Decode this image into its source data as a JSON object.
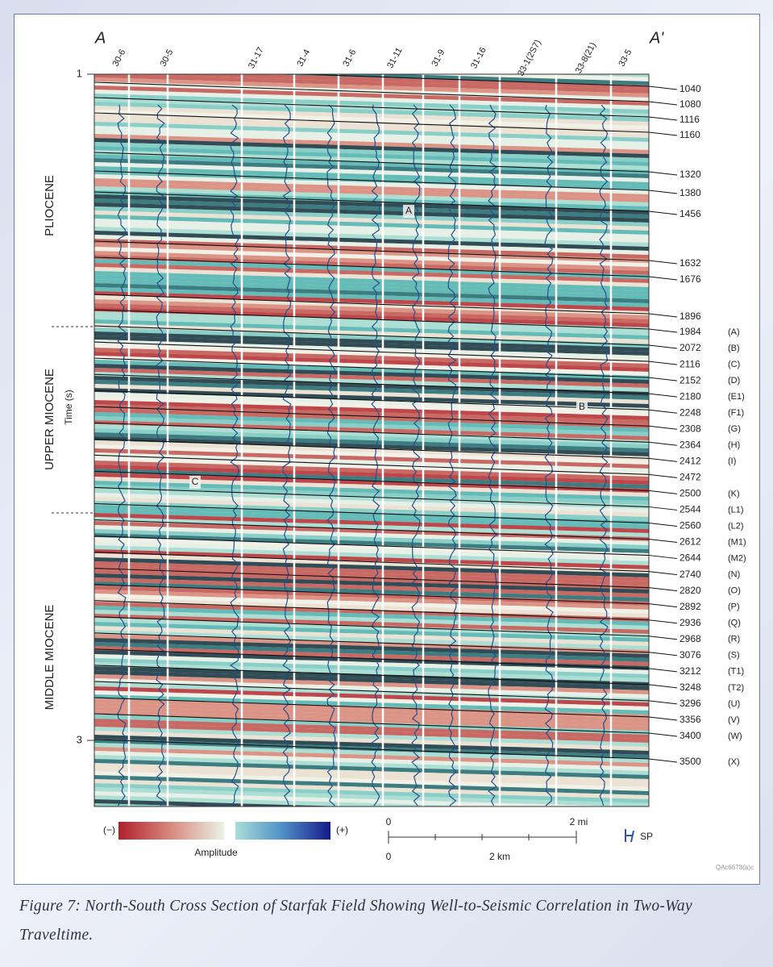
{
  "figure": {
    "section_labels": {
      "left": "A",
      "right": "A'"
    },
    "wells": [
      "30-6",
      "30-5",
      "31-17",
      "31-4",
      "31-6",
      "31-11",
      "31-9",
      "31-16",
      "33-1(2S7)",
      "33-8(21)",
      "33-5"
    ],
    "time_axis": {
      "label": "Time (s)",
      "ticks": [
        1,
        3
      ]
    },
    "epochs": [
      "PLIOCENE",
      "UPPER MIOCENE",
      "MIDDLE MIOCENE"
    ],
    "annotations": [
      "A",
      "B",
      "C"
    ],
    "horizons": [
      {
        "depth": 1040
      },
      {
        "depth": 1080
      },
      {
        "depth": 1116
      },
      {
        "depth": 1160
      },
      {
        "depth": 1320
      },
      {
        "depth": 1380
      },
      {
        "depth": 1456
      },
      {
        "depth": 1632
      },
      {
        "depth": 1676
      },
      {
        "depth": 1896
      },
      {
        "depth": 1984,
        "marker": "(A)"
      },
      {
        "depth": 2072,
        "marker": "(B)"
      },
      {
        "depth": 2116,
        "marker": "(C)"
      },
      {
        "depth": 2152,
        "marker": "(D)"
      },
      {
        "depth": 2180,
        "marker": "(E1)"
      },
      {
        "depth": 2248,
        "marker": "(F1)"
      },
      {
        "depth": 2308,
        "marker": "(G)"
      },
      {
        "depth": 2364,
        "marker": "(H)"
      },
      {
        "depth": 2412,
        "marker": "(I)"
      },
      {
        "depth": 2472
      },
      {
        "depth": 2500,
        "marker": "(K)"
      },
      {
        "depth": 2544,
        "marker": "(L1)"
      },
      {
        "depth": 2560,
        "marker": "(L2)"
      },
      {
        "depth": 2612,
        "marker": "(M1)"
      },
      {
        "depth": 2644,
        "marker": "(M2)"
      },
      {
        "depth": 2740,
        "marker": "(N)"
      },
      {
        "depth": 2820,
        "marker": "(O)"
      },
      {
        "depth": 2892,
        "marker": "(P)"
      },
      {
        "depth": 2936,
        "marker": "(Q)"
      },
      {
        "depth": 2968,
        "marker": "(R)"
      },
      {
        "depth": 3076,
        "marker": "(S)"
      },
      {
        "depth": 3212,
        "marker": "(T1)"
      },
      {
        "depth": 3248,
        "marker": "(T2)"
      },
      {
        "depth": 3296,
        "marker": "(U)"
      },
      {
        "depth": 3356,
        "marker": "(V)"
      },
      {
        "depth": 3400,
        "marker": "(W)"
      },
      {
        "depth": 3500,
        "marker": "(X)"
      }
    ],
    "legend": {
      "negative": "(−)",
      "positive": "(+)",
      "label": "Amplitude"
    },
    "scale": {
      "mi_zero": "0",
      "mi": "2 mi",
      "km_zero": "0",
      "km": "2 km"
    },
    "sp_label": "SP",
    "figure_id": "QAc6678(a)c"
  },
  "caption": "Figure 7: North-South Cross Section of Starfak Field Showing Well-to-Seismic Correlation in Two-Way Traveltime."
}
